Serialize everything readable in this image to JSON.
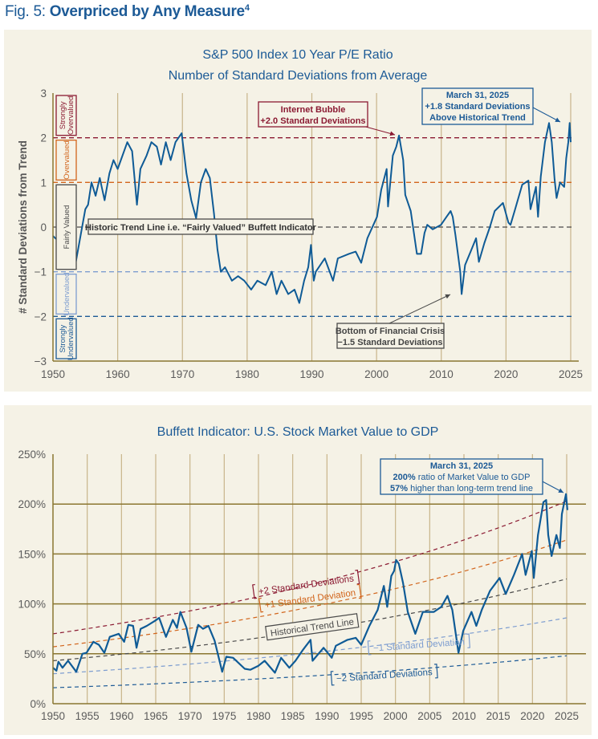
{
  "figure": {
    "prefix": "Fig. 5:",
    "title": "Overpriced by Any Measure",
    "footnote": "4",
    "color": "#1c5a96"
  },
  "chart_data": [
    {
      "type": "line",
      "title": "S&P 500 Index 10 Year P/E Ratio",
      "subtitle": "Number of Standard Deviations from Average",
      "xlabel": "",
      "ylabel": "# Standard Deviations from Trend",
      "xlim": [
        1950,
        2025.25
      ],
      "ylim": [
        -3,
        3
      ],
      "grid": "vertical",
      "x_tick_labels": [
        "1950",
        "1960",
        "1970",
        "1980",
        "1990",
        "2000",
        "2010",
        "2020",
        "2025"
      ],
      "y_ticks": [
        3,
        2,
        1,
        0,
        -1,
        -2,
        -3
      ],
      "y_tick_labels": [
        "3",
        "2",
        "1",
        "0",
        "−1",
        "−2",
        "−3"
      ],
      "reference_lines": [
        {
          "value": 2,
          "color": "#8b1a32"
        },
        {
          "value": 1,
          "color": "#d2651c"
        },
        {
          "value": 0,
          "color": "#4a4a4a"
        },
        {
          "value": -1,
          "color": "#7d9dd0"
        },
        {
          "value": -2,
          "color": "#1c5a96"
        }
      ],
      "zones": [
        {
          "lines": [
            "Strongly",
            "Overvalued"
          ],
          "range": [
            2,
            3
          ],
          "color": "#8b1a32"
        },
        {
          "lines": [
            "Overvalued"
          ],
          "range": [
            1,
            2
          ],
          "color": "#d2651c"
        },
        {
          "lines": [
            "Fairly Valued"
          ],
          "range": [
            -1,
            1
          ],
          "color": "#4a4a4a"
        },
        {
          "lines": [
            "Undervalued"
          ],
          "range": [
            -2,
            -1
          ],
          "color": "#7d9dd0"
        },
        {
          "lines": [
            "Strongly",
            "Undervalued"
          ],
          "range": [
            -3,
            -2
          ],
          "color": "#1c5a96"
        }
      ],
      "annotations": [
        {
          "lines": [
            "Internet Bubble",
            "+2.0 Standard Deviations"
          ],
          "color": "#8b1a32"
        },
        {
          "lines": [
            "March 31, 2025",
            "+1.8 Standard Deviations",
            "Above Historical Trend"
          ],
          "color": "#1c5a96"
        },
        {
          "lines": [
            "Historic Trend Line i.e. “Fairly Valued” Buffett Indicator"
          ],
          "color": "#4a4a4a"
        },
        {
          "lines": [
            "Bottom of Financial Crisis",
            "−1.5 Standard Deviations"
          ],
          "color": "#4a4a4a"
        }
      ],
      "series": [
        {
          "color": "#0f5b96",
          "points": [
            [
              1950.0,
              -0.2
            ],
            [
              1950.7,
              -0.3
            ],
            [
              1951.6,
              -0.2
            ],
            [
              1952.6,
              -0.4
            ],
            [
              1953.3,
              -0.8
            ],
            [
              1954.0,
              -0.2
            ],
            [
              1954.7,
              0.4
            ],
            [
              1955.1,
              0.5
            ],
            [
              1955.6,
              1.0
            ],
            [
              1956.2,
              0.7
            ],
            [
              1956.8,
              1.1
            ],
            [
              1957.5,
              0.6
            ],
            [
              1958.2,
              1.2
            ],
            [
              1958.8,
              1.5
            ],
            [
              1959.4,
              1.3
            ],
            [
              1960.1,
              1.6
            ],
            [
              1960.8,
              1.9
            ],
            [
              1961.5,
              1.7
            ],
            [
              1962.2,
              0.5
            ],
            [
              1962.7,
              1.3
            ],
            [
              1963.6,
              1.6
            ],
            [
              1964.3,
              1.9
            ],
            [
              1965.1,
              1.8
            ],
            [
              1965.7,
              1.4
            ],
            [
              1966.4,
              1.9
            ],
            [
              1967.1,
              1.5
            ],
            [
              1967.8,
              1.9
            ],
            [
              1968.7,
              2.1
            ],
            [
              1969.4,
              1.2
            ],
            [
              1970.1,
              0.6
            ],
            [
              1970.8,
              0.2
            ],
            [
              1971.5,
              1.0
            ],
            [
              1972.2,
              1.3
            ],
            [
              1972.8,
              1.1
            ],
            [
              1973.4,
              0.3
            ],
            [
              1973.9,
              -0.5
            ],
            [
              1974.4,
              -1.0
            ],
            [
              1975.0,
              -0.9
            ],
            [
              1976.0,
              -1.2
            ],
            [
              1976.9,
              -1.1
            ],
            [
              1977.8,
              -1.2
            ],
            [
              1978.8,
              -1.4
            ],
            [
              1979.7,
              -1.2
            ],
            [
              1980.9,
              -1.3
            ],
            [
              1981.8,
              -1.0
            ],
            [
              1982.5,
              -1.5
            ],
            [
              1983.2,
              -1.2
            ],
            [
              1984.2,
              -1.5
            ],
            [
              1985.1,
              -1.4
            ],
            [
              1985.8,
              -1.7
            ],
            [
              1986.5,
              -1.2
            ],
            [
              1987.1,
              -0.9
            ],
            [
              1987.5,
              -0.4
            ],
            [
              1987.9,
              -1.2
            ],
            [
              1988.2,
              -1.0
            ],
            [
              1989.5,
              -0.7
            ],
            [
              1990.7,
              -1.2
            ],
            [
              1991.4,
              -0.7
            ],
            [
              1993.0,
              -0.6
            ],
            [
              1994.0,
              -0.55
            ],
            [
              1994.8,
              -0.8
            ],
            [
              1995.7,
              -0.25
            ],
            [
              1997.1,
              0.23
            ],
            [
              1997.7,
              0.83
            ],
            [
              1998.5,
              1.3
            ],
            [
              1998.7,
              0.46
            ],
            [
              1999.4,
              1.6
            ],
            [
              1999.9,
              1.8
            ],
            [
              2000.3,
              2.05
            ],
            [
              2000.9,
              1.5
            ],
            [
              2001.2,
              0.72
            ],
            [
              2002.0,
              0.36
            ],
            [
              2002.9,
              -0.6
            ],
            [
              2003.5,
              -0.6
            ],
            [
              2004.0,
              -0.13
            ],
            [
              2004.4,
              0.05
            ],
            [
              2005.2,
              -0.05
            ],
            [
              2006.4,
              0.05
            ],
            [
              2007.2,
              0.23
            ],
            [
              2007.8,
              0.36
            ],
            [
              2008.1,
              0.23
            ],
            [
              2008.5,
              -0.18
            ],
            [
              2009.2,
              -1.0
            ],
            [
              2009.4,
              -1.5
            ],
            [
              2009.9,
              -0.85
            ],
            [
              2010.7,
              -0.55
            ],
            [
              2011.5,
              -0.25
            ],
            [
              2011.9,
              -0.78
            ],
            [
              2012.7,
              -0.36
            ],
            [
              2013.5,
              0.0
            ],
            [
              2014.2,
              0.36
            ],
            [
              2015.4,
              0.54
            ],
            [
              2016.2,
              0.1
            ],
            [
              2016.5,
              0.05
            ],
            [
              2017.1,
              0.36
            ],
            [
              2018.2,
              0.95
            ],
            [
              2019.1,
              1.04
            ],
            [
              2019.4,
              0.4
            ],
            [
              2020.2,
              0.9
            ],
            [
              2020.5,
              0.23
            ],
            [
              2020.9,
              1.13
            ],
            [
              2021.5,
              1.9
            ],
            [
              2022.1,
              2.33
            ],
            [
              2022.5,
              1.9
            ],
            [
              2022.9,
              1.07
            ],
            [
              2023.2,
              0.65
            ],
            [
              2023.7,
              1.0
            ],
            [
              2024.3,
              0.9
            ],
            [
              2024.6,
              1.54
            ],
            [
              2024.9,
              1.9
            ],
            [
              2025.1,
              2.33
            ],
            [
              2025.25,
              1.9
            ]
          ]
        }
      ]
    },
    {
      "type": "line",
      "title": "Buffett Indicator: U.S. Stock Market Value to GDP",
      "xlabel": "",
      "ylabel": "",
      "xlim": [
        1950,
        2025
      ],
      "ylim": [
        0,
        250
      ],
      "grid": "both",
      "x_tick_labels": [
        "1950",
        "1955",
        "1960",
        "1965",
        "1970",
        "1975",
        "1980",
        "1985",
        "1990",
        "1995",
        "2000",
        "2005",
        "2010",
        "2015",
        "2020",
        "2025"
      ],
      "y_ticks": [
        0,
        50,
        100,
        150,
        200,
        250
      ],
      "y_tick_labels": [
        "0%",
        "50%",
        "100%",
        "150%",
        "200%",
        "250%"
      ],
      "bands": [
        {
          "label": "+2 Standard Deviations",
          "start": 70,
          "end": 203,
          "color": "#8b1a32"
        },
        {
          "label": "+1 Standard Deviation",
          "start": 57,
          "end": 164,
          "color": "#d2651c"
        },
        {
          "label": "Historical Trend Line",
          "start": 43,
          "end": 125,
          "color": "#4a4a4a"
        },
        {
          "label": "−1 Standard Deviation",
          "start": 30,
          "end": 86,
          "color": "#7d9dd0"
        },
        {
          "label": "−2 Standard Deviations",
          "start": 16,
          "end": 48,
          "color": "#1c5a96"
        }
      ],
      "annotation": {
        "date": "March 31, 2025",
        "line2_bold": "200%",
        "line2_rest": " ratio of Market Value to GDP",
        "line3_bold": "57%",
        "line3_rest": " higher than long-term trend line",
        "color": "#1c5a96"
      },
      "series": [
        {
          "color": "#0f5b96",
          "points": [
            [
              1950.0,
              36
            ],
            [
              1950.5,
              33
            ],
            [
              1950.8,
              42
            ],
            [
              1951.4,
              36
            ],
            [
              1952.2,
              43
            ],
            [
              1953.4,
              32
            ],
            [
              1954.3,
              50
            ],
            [
              1954.9,
              51
            ],
            [
              1955.9,
              62
            ],
            [
              1956.7,
              59
            ],
            [
              1957.5,
              51
            ],
            [
              1958.3,
              67
            ],
            [
              1959.6,
              70
            ],
            [
              1960.4,
              62
            ],
            [
              1961.0,
              79
            ],
            [
              1961.7,
              78
            ],
            [
              1962.2,
              56
            ],
            [
              1962.8,
              75
            ],
            [
              1963.7,
              78
            ],
            [
              1964.9,
              83
            ],
            [
              1965.5,
              86
            ],
            [
              1966.5,
              67
            ],
            [
              1967.5,
              84
            ],
            [
              1968.1,
              76
            ],
            [
              1968.6,
              92
            ],
            [
              1969.5,
              76
            ],
            [
              1970.2,
              52
            ],
            [
              1971.2,
              79
            ],
            [
              1971.9,
              75
            ],
            [
              1972.7,
              78
            ],
            [
              1973.6,
              63
            ],
            [
              1974.7,
              32
            ],
            [
              1975.3,
              47
            ],
            [
              1976.3,
              46
            ],
            [
              1978.0,
              35
            ],
            [
              1978.8,
              34
            ],
            [
              1980.0,
              38
            ],
            [
              1980.9,
              43
            ],
            [
              1982.4,
              31
            ],
            [
              1983.3,
              46
            ],
            [
              1984.5,
              36
            ],
            [
              1985.4,
              43
            ],
            [
              1986.5,
              54
            ],
            [
              1987.6,
              64
            ],
            [
              1987.9,
              43
            ],
            [
              1989.5,
              56
            ],
            [
              1990.7,
              46
            ],
            [
              1991.3,
              58
            ],
            [
              1993.0,
              64
            ],
            [
              1994.2,
              66
            ],
            [
              1995.0,
              59
            ],
            [
              1996.2,
              78
            ],
            [
              1997.4,
              94
            ],
            [
              1998.3,
              118
            ],
            [
              1998.8,
              97
            ],
            [
              1999.4,
              128
            ],
            [
              1999.8,
              133
            ],
            [
              2000.1,
              144
            ],
            [
              2000.5,
              140
            ],
            [
              2001.1,
              121
            ],
            [
              2001.8,
              92
            ],
            [
              2002.9,
              70
            ],
            [
              2004.0,
              92
            ],
            [
              2005.6,
              92
            ],
            [
              2006.7,
              97
            ],
            [
              2007.6,
              108
            ],
            [
              2008.3,
              94
            ],
            [
              2009.2,
              51
            ],
            [
              2009.9,
              73
            ],
            [
              2011.1,
              92
            ],
            [
              2011.8,
              78
            ],
            [
              2012.6,
              94
            ],
            [
              2013.8,
              113
            ],
            [
              2015.2,
              126
            ],
            [
              2016.1,
              110
            ],
            [
              2017.3,
              129
            ],
            [
              2018.5,
              150
            ],
            [
              2019.0,
              129
            ],
            [
              2019.9,
              153
            ],
            [
              2020.2,
              126
            ],
            [
              2020.8,
              169
            ],
            [
              2021.6,
              202
            ],
            [
              2022.0,
              204
            ],
            [
              2022.3,
              169
            ],
            [
              2022.8,
              148
            ],
            [
              2023.5,
              169
            ],
            [
              2024.0,
              156
            ],
            [
              2024.3,
              190
            ],
            [
              2024.9,
              210
            ],
            [
              2025.1,
              194
            ]
          ]
        }
      ]
    }
  ],
  "colors": {
    "panel": "#f5f2e6",
    "grid_vertical": "#c8b48a",
    "grid_horizontal": "#8a7630",
    "axis": "#8a7630"
  }
}
